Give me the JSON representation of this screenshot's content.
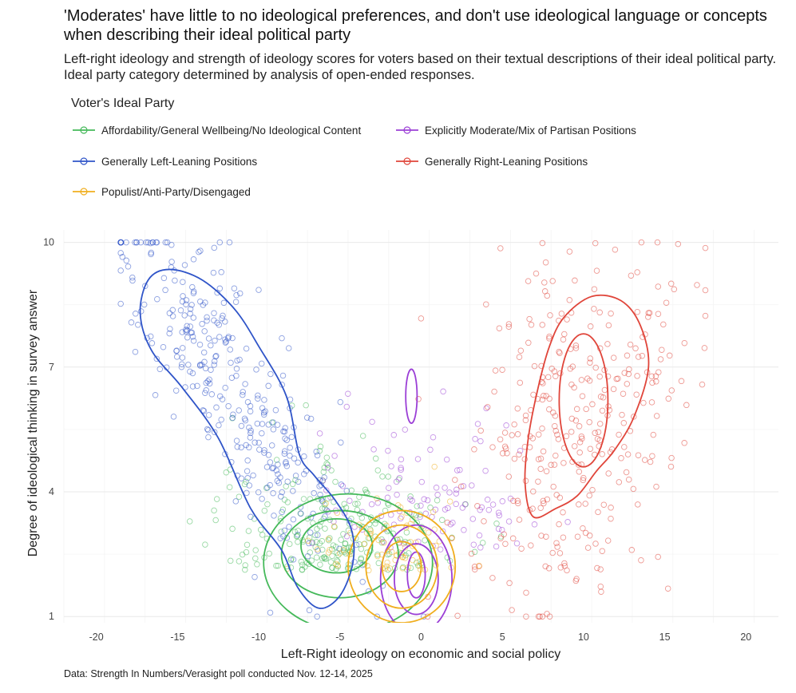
{
  "title": "'Moderates' have little to no ideological preferences, and don't use ideological language or concepts when describing their ideal political party",
  "subtitle": "Left-right ideology and strength of ideology scores for voters based on their textual descriptions of their ideal political party. Ideal party category determined by analysis of open-ended responses.",
  "caption": "Data: Strength In Numbers/Verasight poll conducted Nov. 12-14, 2025",
  "chart_data": {
    "type": "scatter",
    "title": "'Moderates' have little to no ideological preferences, and don't use ideological language or concepts when describing their ideal political party",
    "xlabel": "Left-Right ideology on economic and social policy",
    "ylabel": "Degree of ideological thinking in survey answer",
    "xlim": [
      -22,
      22
    ],
    "ylim": [
      0.85,
      10.3
    ],
    "xticks": [
      -20,
      -15,
      -10,
      -5,
      0,
      5,
      10,
      15,
      20
    ],
    "yticks": [
      1,
      4,
      7,
      10
    ],
    "grid": true,
    "legend_title": "Voter's Ideal Party",
    "legend_position": "top",
    "series": [
      {
        "name": "Affordability/General Wellbeing/No Ideological Content",
        "color": "#45b95a",
        "cloud": {
          "cx": -5,
          "cy": 2.6,
          "sx": 3.5,
          "sy": 1.6,
          "n": 240
        },
        "contours": [
          {
            "cx": -4.5,
            "cy": 2.3,
            "rx": 5.2,
            "ry": 1.65
          },
          {
            "cx": -5.0,
            "cy": 2.5,
            "rx": 3.6,
            "ry": 1.05
          },
          {
            "cx": -5.2,
            "cy": 2.7,
            "rx": 2.2,
            "ry": 0.65
          }
        ]
      },
      {
        "name": "Explicitly Moderate/Mix of Partisan Positions",
        "color": "#9b3fd6",
        "cloud": {
          "cx": -0.5,
          "cy": 3.2,
          "sx": 3.5,
          "sy": 2.0,
          "n": 110
        },
        "contours": [
          {
            "cx": -0.6,
            "cy": 6.3,
            "rx": 0.35,
            "ry": 0.65
          },
          {
            "cx": -0.3,
            "cy": 1.9,
            "rx": 2.2,
            "ry": 1.3
          },
          {
            "cx": -0.3,
            "cy": 1.9,
            "rx": 1.35,
            "ry": 0.85
          },
          {
            "cx": -0.3,
            "cy": 2.0,
            "rx": 0.55,
            "ry": 0.55
          }
        ]
      },
      {
        "name": "Generally Left-Leaning Positions",
        "color": "#2f54c8",
        "cloud": {
          "cx": -12,
          "cy": 6.8,
          "sx": 3.8,
          "sy": 2.1,
          "n": 340
        },
        "contours": []
      },
      {
        "name": "Generally Right-Leaning Positions",
        "color": "#e0453a",
        "cloud": {
          "cx": 9.5,
          "cy": 5.5,
          "sx": 3.4,
          "sy": 2.2,
          "n": 330
        },
        "contours": [
          {
            "cx": 10.0,
            "cy": 6.2,
            "rx": 1.5,
            "ry": 1.6
          }
        ]
      },
      {
        "name": "Populist/Anti-Party/Disengaged",
        "color": "#f0ae1e",
        "cloud": {
          "cx": -1.5,
          "cy": 2.4,
          "sx": 2.5,
          "sy": 1.0,
          "n": 80
        },
        "contours": [
          {
            "cx": -1.2,
            "cy": 2.2,
            "rx": 3.3,
            "ry": 1.35
          },
          {
            "cx": -1.2,
            "cy": 2.2,
            "rx": 2.2,
            "ry": 1.0
          },
          {
            "cx": -1.2,
            "cy": 2.2,
            "rx": 1.2,
            "ry": 0.6
          }
        ]
      }
    ],
    "left_outer_contour": [
      [
        -15.5,
        9.35
      ],
      [
        -13.5,
        9.1
      ],
      [
        -11.5,
        8.4
      ],
      [
        -10,
        7.5
      ],
      [
        -8.3,
        6.3
      ],
      [
        -7.5,
        4.9
      ],
      [
        -6.6,
        4.4
      ],
      [
        -5.3,
        3.8
      ],
      [
        -4.3,
        3.1
      ],
      [
        -4.2,
        2.3
      ],
      [
        -5.0,
        1.5
      ],
      [
        -6.3,
        1.2
      ],
      [
        -7.6,
        1.7
      ],
      [
        -8.6,
        2.6
      ],
      [
        -10.5,
        3.6
      ],
      [
        -12.5,
        5.3
      ],
      [
        -14.7,
        6.5
      ],
      [
        -16.6,
        7.4
      ],
      [
        -17.3,
        8.3
      ],
      [
        -16.8,
        9.1
      ]
    ],
    "right_outer_contour": [
      [
        10.5,
        8.7
      ],
      [
        12.3,
        8.6
      ],
      [
        13.5,
        8.0
      ],
      [
        14.0,
        7.0
      ],
      [
        13.1,
        5.8
      ],
      [
        11.9,
        5.0
      ],
      [
        10.8,
        4.5
      ],
      [
        9.6,
        3.9
      ],
      [
        8.3,
        3.6
      ],
      [
        6.9,
        3.4
      ],
      [
        6.4,
        4.2
      ],
      [
        6.6,
        5.3
      ],
      [
        7.2,
        6.5
      ],
      [
        7.9,
        7.5
      ],
      [
        8.8,
        8.2
      ]
    ]
  },
  "legend_items": [
    "Affordability/General Wellbeing/No Ideological Content",
    "Explicitly Moderate/Mix of Partisan Positions",
    "Generally Left-Leaning Positions",
    "Generally Right-Leaning Positions",
    "Populist/Anti-Party/Disengaged"
  ]
}
